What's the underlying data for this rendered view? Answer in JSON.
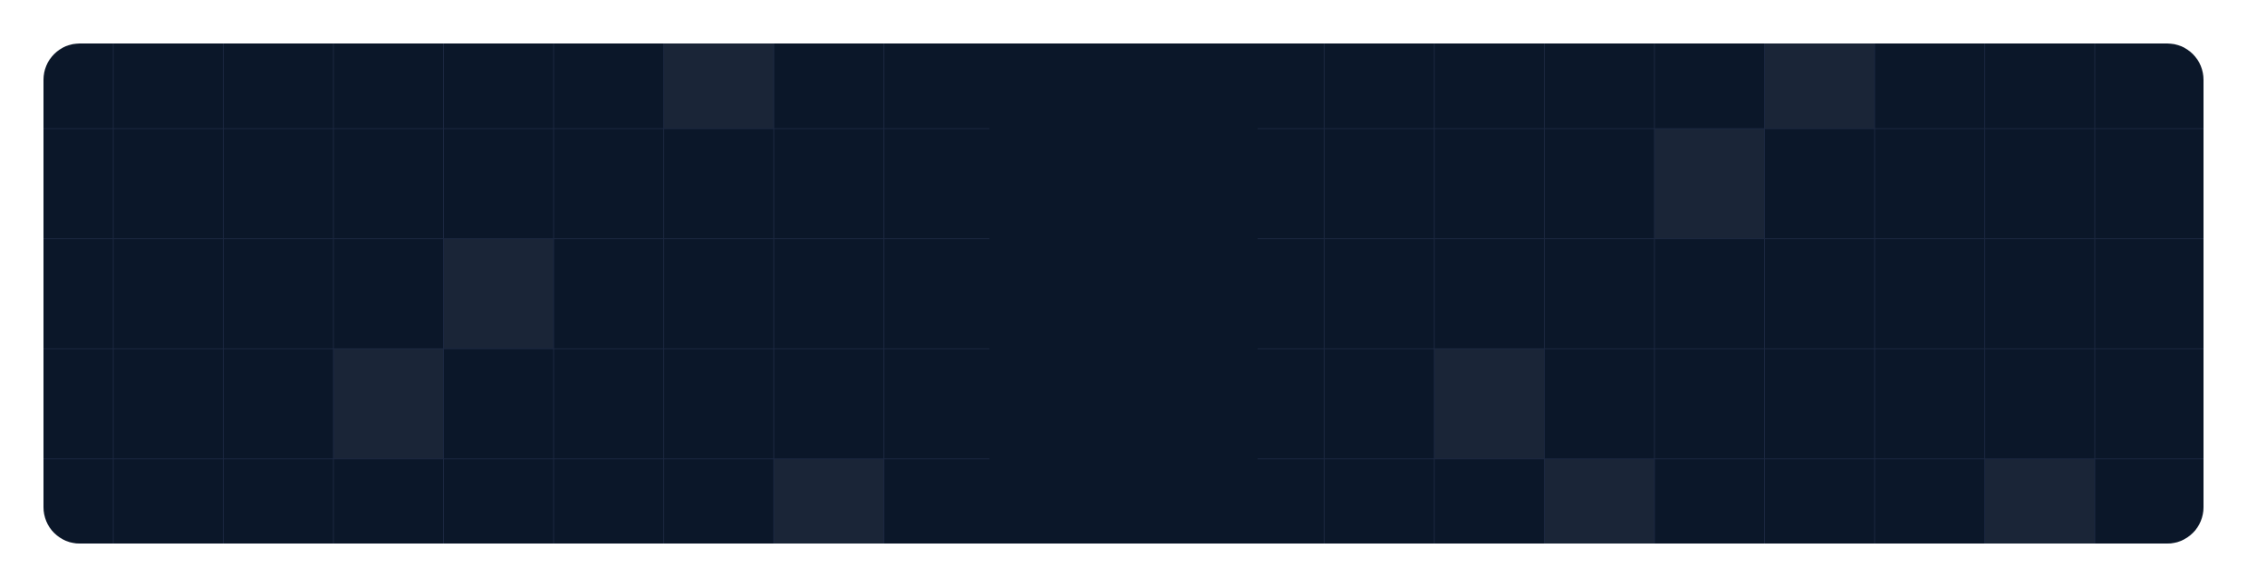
{
  "panel": {
    "background_color": "#0b1729",
    "grid_line_color": "#1b2740",
    "highlight_cell_color": "#1a2537",
    "page_background": "#ffffff"
  },
  "grid": {
    "columns": 20,
    "rows": 5,
    "highlighted_cells": [
      {
        "col": 6,
        "row": 0
      },
      {
        "col": 16,
        "row": 0
      },
      {
        "col": 15,
        "row": 1
      },
      {
        "col": 4,
        "row": 2
      },
      {
        "col": 3,
        "row": 3
      },
      {
        "col": 13,
        "row": 3
      },
      {
        "col": 7,
        "row": 4
      },
      {
        "col": 14,
        "row": 4
      },
      {
        "col": 18,
        "row": 4
      }
    ]
  }
}
